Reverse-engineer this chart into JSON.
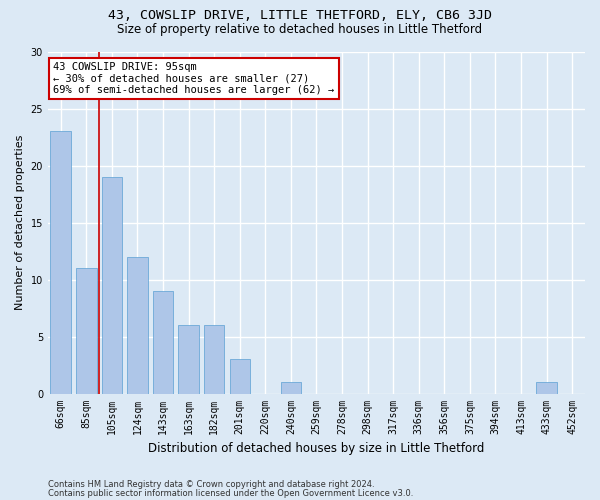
{
  "title1": "43, COWSLIP DRIVE, LITTLE THETFORD, ELY, CB6 3JD",
  "title2": "Size of property relative to detached houses in Little Thetford",
  "xlabel": "Distribution of detached houses by size in Little Thetford",
  "ylabel": "Number of detached properties",
  "footnote1": "Contains HM Land Registry data © Crown copyright and database right 2024.",
  "footnote2": "Contains public sector information licensed under the Open Government Licence v3.0.",
  "categories": [
    "66sqm",
    "85sqm",
    "105sqm",
    "124sqm",
    "143sqm",
    "163sqm",
    "182sqm",
    "201sqm",
    "220sqm",
    "240sqm",
    "259sqm",
    "278sqm",
    "298sqm",
    "317sqm",
    "336sqm",
    "356sqm",
    "375sqm",
    "394sqm",
    "413sqm",
    "433sqm",
    "452sqm"
  ],
  "values": [
    23,
    11,
    19,
    12,
    9,
    6,
    6,
    3,
    0,
    1,
    0,
    0,
    0,
    0,
    0,
    0,
    0,
    0,
    0,
    1,
    0
  ],
  "bar_color": "#aec6e8",
  "bar_edge_color": "#5a9fd4",
  "background_color": "#dce9f5",
  "grid_color": "#ffffff",
  "annotation_line1": "43 COWSLIP DRIVE: 95sqm",
  "annotation_line2": "← 30% of detached houses are smaller (27)",
  "annotation_line3": "69% of semi-detached houses are larger (62) →",
  "annotation_box_color": "#ffffff",
  "annotation_border_color": "#cc0000",
  "vline_color": "#cc0000",
  "vline_pos": 1.5,
  "ylim": [
    0,
    30
  ],
  "yticks": [
    0,
    5,
    10,
    15,
    20,
    25,
    30
  ],
  "title1_fontsize": 9.5,
  "title2_fontsize": 8.5,
  "ylabel_fontsize": 8,
  "xlabel_fontsize": 8.5,
  "tick_fontsize": 7,
  "annot_fontsize": 7.5,
  "footnote_fontsize": 6
}
